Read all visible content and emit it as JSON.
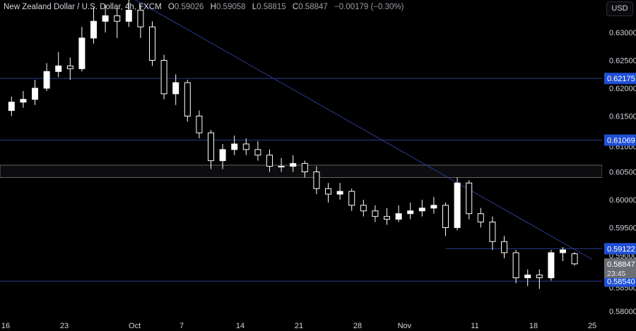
{
  "header": {
    "symbol": "New Zealand Dollar / U.S. Dollar, 4h, FXCM",
    "open_label": "O",
    "open": "0.59026",
    "high_label": "H",
    "high": "0.59058",
    "low_label": "L",
    "low": "0.58815",
    "close_label": "C",
    "close": "0.58847",
    "change": "−0.00179 (−0.30%)"
  },
  "currency_button": "USD",
  "colors": {
    "up": "#ffffff",
    "down": "#ffffff",
    "line": "#2c3a8c",
    "level_label": "#1e4fd8",
    "current_label": "#6b6e75",
    "background": "#000000"
  },
  "chart_data": {
    "type": "candlestick",
    "ylim": [
      0.578,
      0.636
    ],
    "y_ticks": [
      "0.63000",
      "0.62500",
      "0.62000",
      "0.61500",
      "0.61000",
      "0.60500",
      "0.60000",
      "0.59500",
      "0.59000",
      "0.58500",
      "0.58000"
    ],
    "x_ticks": [
      "16",
      "23",
      "Oct",
      "7",
      "14",
      "21",
      "28",
      "Nov",
      "11",
      "18",
      "25"
    ],
    "x_tick_day_index": [
      0,
      5,
      11,
      15,
      20,
      25,
      30,
      34,
      40,
      45,
      50
    ],
    "dates": [
      "Sep16",
      "Sep17",
      "Sep18",
      "Sep19",
      "Sep20",
      "Sep23",
      "Sep24",
      "Sep25",
      "Sep26",
      "Sep27",
      "Sep30",
      "Oct1",
      "Oct2",
      "Oct3",
      "Oct4",
      "Oct7",
      "Oct8",
      "Oct9",
      "Oct10",
      "Oct11",
      "Oct14",
      "Oct15",
      "Oct16",
      "Oct17",
      "Oct18",
      "Oct21",
      "Oct22",
      "Oct23",
      "Oct24",
      "Oct25",
      "Oct28",
      "Oct29",
      "Oct30",
      "Oct31",
      "Nov1",
      "Nov4",
      "Nov5",
      "Nov6",
      "Nov7",
      "Nov8",
      "Nov11",
      "Nov12",
      "Nov13",
      "Nov14",
      "Nov15",
      "Nov18",
      "Nov19",
      "Nov20",
      "Nov21"
    ],
    "ohlc": [
      [
        0.616,
        0.6185,
        0.615,
        0.6175
      ],
      [
        0.6175,
        0.6195,
        0.6165,
        0.618
      ],
      [
        0.618,
        0.6215,
        0.617,
        0.62
      ],
      [
        0.62,
        0.6245,
        0.6195,
        0.623
      ],
      [
        0.623,
        0.6265,
        0.622,
        0.624
      ],
      [
        0.624,
        0.6255,
        0.6215,
        0.6235
      ],
      [
        0.6235,
        0.631,
        0.623,
        0.629
      ],
      [
        0.629,
        0.6345,
        0.628,
        0.632
      ],
      [
        0.632,
        0.635,
        0.63,
        0.633
      ],
      [
        0.633,
        0.6345,
        0.629,
        0.632
      ],
      [
        0.632,
        0.636,
        0.631,
        0.634
      ],
      [
        0.634,
        0.635,
        0.629,
        0.631
      ],
      [
        0.631,
        0.632,
        0.624,
        0.625
      ],
      [
        0.625,
        0.626,
        0.618,
        0.619
      ],
      [
        0.619,
        0.6225,
        0.617,
        0.621
      ],
      [
        0.621,
        0.6215,
        0.614,
        0.615
      ],
      [
        0.615,
        0.616,
        0.611,
        0.612
      ],
      [
        0.612,
        0.6125,
        0.6055,
        0.607
      ],
      [
        0.607,
        0.61,
        0.6055,
        0.609
      ],
      [
        0.609,
        0.6115,
        0.608,
        0.61
      ],
      [
        0.61,
        0.611,
        0.608,
        0.609
      ],
      [
        0.609,
        0.6105,
        0.607,
        0.608
      ],
      [
        0.608,
        0.609,
        0.605,
        0.606
      ],
      [
        0.606,
        0.6075,
        0.605,
        0.606
      ],
      [
        0.606,
        0.608,
        0.605,
        0.6065
      ],
      [
        0.6065,
        0.607,
        0.604,
        0.605
      ],
      [
        0.605,
        0.606,
        0.601,
        0.602
      ],
      [
        0.602,
        0.603,
        0.5995,
        0.601
      ],
      [
        0.601,
        0.603,
        0.6,
        0.6015
      ],
      [
        0.6015,
        0.602,
        0.598,
        0.599
      ],
      [
        0.599,
        0.6,
        0.597,
        0.598
      ],
      [
        0.598,
        0.599,
        0.596,
        0.597
      ],
      [
        0.597,
        0.5985,
        0.5955,
        0.5965
      ],
      [
        0.5965,
        0.599,
        0.596,
        0.5975
      ],
      [
        0.5975,
        0.5995,
        0.5965,
        0.598
      ],
      [
        0.598,
        0.6,
        0.597,
        0.5985
      ],
      [
        0.5985,
        0.6005,
        0.5975,
        0.599
      ],
      [
        0.599,
        0.5995,
        0.5935,
        0.595
      ],
      [
        0.595,
        0.604,
        0.5945,
        0.603
      ],
      [
        0.603,
        0.6035,
        0.5965,
        0.5975
      ],
      [
        0.5975,
        0.5985,
        0.595,
        0.596
      ],
      [
        0.596,
        0.597,
        0.591,
        0.5925
      ],
      [
        0.5925,
        0.5935,
        0.5895,
        0.5905
      ],
      [
        0.5905,
        0.591,
        0.585,
        0.586
      ],
      [
        0.586,
        0.5875,
        0.5845,
        0.5865
      ],
      [
        0.5865,
        0.5875,
        0.584,
        0.586
      ],
      [
        0.586,
        0.591,
        0.5855,
        0.5905
      ],
      [
        0.5905,
        0.5915,
        0.589,
        0.591
      ],
      [
        0.5903,
        0.5906,
        0.5882,
        0.5885
      ]
    ],
    "horizontal_levels": [
      {
        "price": 0.62175,
        "label": "0.62175"
      },
      {
        "price": 0.61069,
        "label": "0.61069"
      },
      {
        "price": 0.59122,
        "label": "0.59122",
        "start_date": "Nov6"
      },
      {
        "price": 0.5854,
        "label": "0.58540"
      }
    ],
    "zone": {
      "top": 0.6062,
      "bottom": 0.604
    },
    "trendline": {
      "from": {
        "date": "Sep30",
        "price": 0.6365
      },
      "to": {
        "date": "Nov25",
        "price": 0.5893
      }
    },
    "current_price": {
      "label": "0.58847",
      "countdown": "23:45",
      "price": 0.58847
    }
  }
}
